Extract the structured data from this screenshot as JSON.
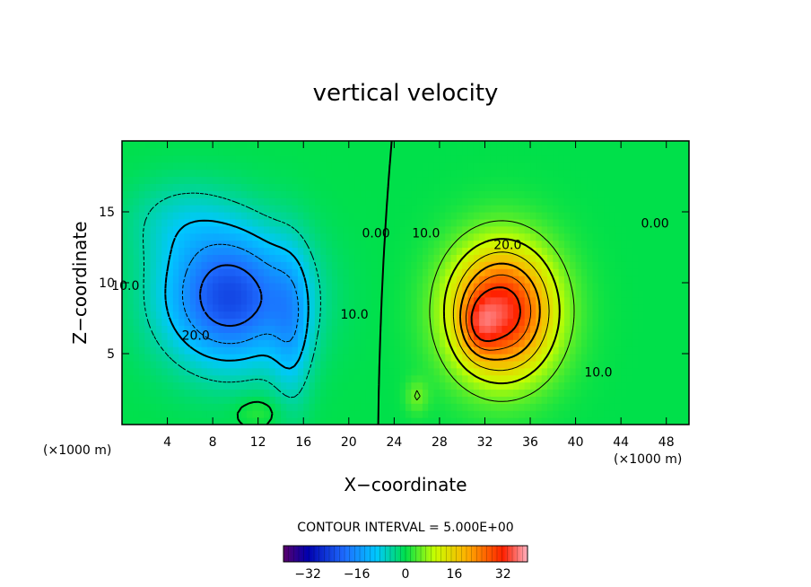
{
  "chart_data": {
    "type": "heatmap",
    "title": "vertical velocity",
    "xlabel": "X−coordinate",
    "ylabel": "Z−coordinate",
    "x_unit": "(×1000 m)",
    "x_unit_right": "(×1000 m)",
    "xlim": [
      0,
      50
    ],
    "ylim": [
      0,
      20
    ],
    "x_ticks": [
      4,
      8,
      12,
      16,
      20,
      24,
      28,
      32,
      36,
      40,
      44,
      48
    ],
    "y_ticks": [
      5,
      10,
      15
    ],
    "contour_interval_text": "CONTOUR INTERVAL = 5.000E+00",
    "colorbar": {
      "range": [
        -40,
        40
      ],
      "ticks": [
        -32,
        -16,
        0,
        16,
        32
      ],
      "tick_labels": [
        "−32",
        "−16",
        "0",
        "16",
        "32"
      ]
    },
    "contour_labels": [
      {
        "text": "20.0",
        "x": 6.5,
        "z": 6.3
      },
      {
        "text": "10.0",
        "x": 20.5,
        "z": 7.8
      },
      {
        "text": "10.0",
        "x": 0.3,
        "z": 9.8
      },
      {
        "text": "0.00",
        "x": 22.4,
        "z": 13.5
      },
      {
        "text": "10.0",
        "x": 26.8,
        "z": 13.5
      },
      {
        "text": "20.0",
        "x": 34.0,
        "z": 12.7
      },
      {
        "text": "10.0",
        "x": 42.0,
        "z": 3.7
      },
      {
        "text": "0.00",
        "x": 47.0,
        "z": 14.2
      }
    ],
    "features": [
      {
        "name": "downdraft",
        "center_x": 9.5,
        "center_z": 9.0,
        "min_value": -27
      },
      {
        "name": "updraft",
        "center_x": 33.5,
        "center_z": 8.0,
        "max_value": 34
      }
    ]
  }
}
